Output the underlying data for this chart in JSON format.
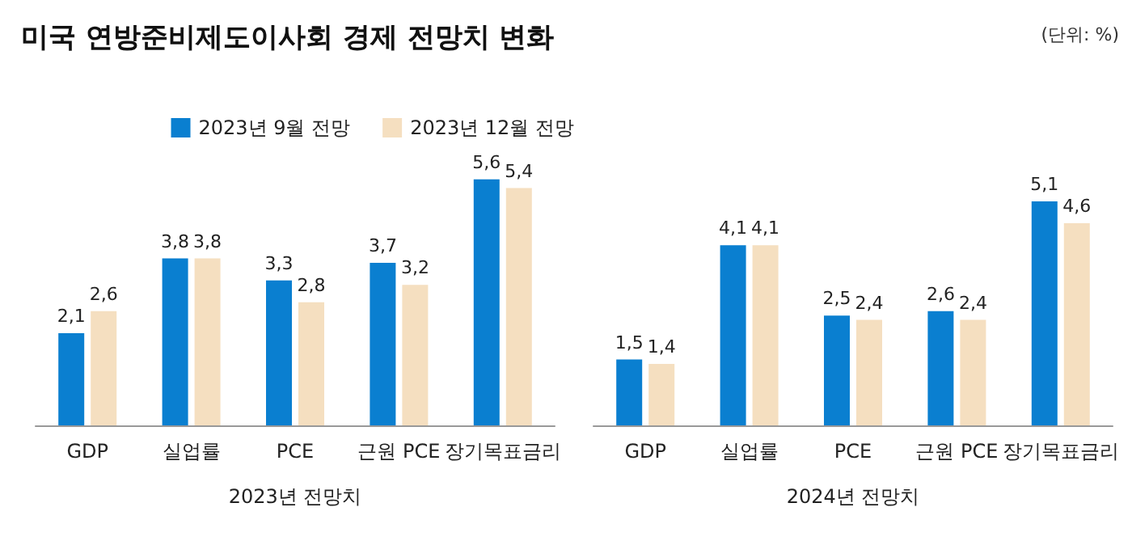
{
  "chart_data": [
    {
      "type": "bar",
      "title": "미국 연방준비제도이사회 경제 전망치 변화",
      "xlabel": "2023년 전망치",
      "categories": [
        "GDP",
        "실업률",
        "PCE",
        "근원 PCE",
        "장기목표금리"
      ],
      "tick_labels": "x",
      "grid": false,
      "legend": "top right",
      "series": [
        {
          "name": "2023년 9월 전망",
          "color": "#0a7fd0",
          "values": [
            2.1,
            3.8,
            3.3,
            3.7,
            5.6
          ],
          "value_labels": [
            "2,1",
            "3,8",
            "3,3",
            "3,7",
            "5,6"
          ]
        },
        {
          "name": "2023년 12월 전망",
          "color": "#f5dfc0",
          "values": [
            2.6,
            3.8,
            2.8,
            3.2,
            5.4
          ],
          "value_labels": [
            "2,6",
            "3,8",
            "2,8",
            "3,2",
            "5,4"
          ]
        }
      ]
    },
    {
      "type": "bar",
      "xlabel": "2024년 전망치",
      "annotations": [
        "(단위: %)"
      ],
      "categories": [
        "GDP",
        "실업률",
        "PCE",
        "근원 PCE",
        "장기목표금리"
      ],
      "tick_labels": "x",
      "grid": false,
      "series": [
        {
          "color": "#0a7fd0",
          "values": [
            1.5,
            4.1,
            2.5,
            2.6,
            5.1
          ],
          "value_labels": [
            "1,5",
            "4,1",
            "2,5",
            "2,6",
            "5,1"
          ]
        },
        {
          "color": "#f5dfc0",
          "values": [
            1.4,
            4.1,
            2.4,
            2.4,
            4.6
          ],
          "value_labels": [
            "1,4",
            "4,1",
            "2,4",
            "2,4",
            "4,6"
          ]
        }
      ]
    }
  ]
}
